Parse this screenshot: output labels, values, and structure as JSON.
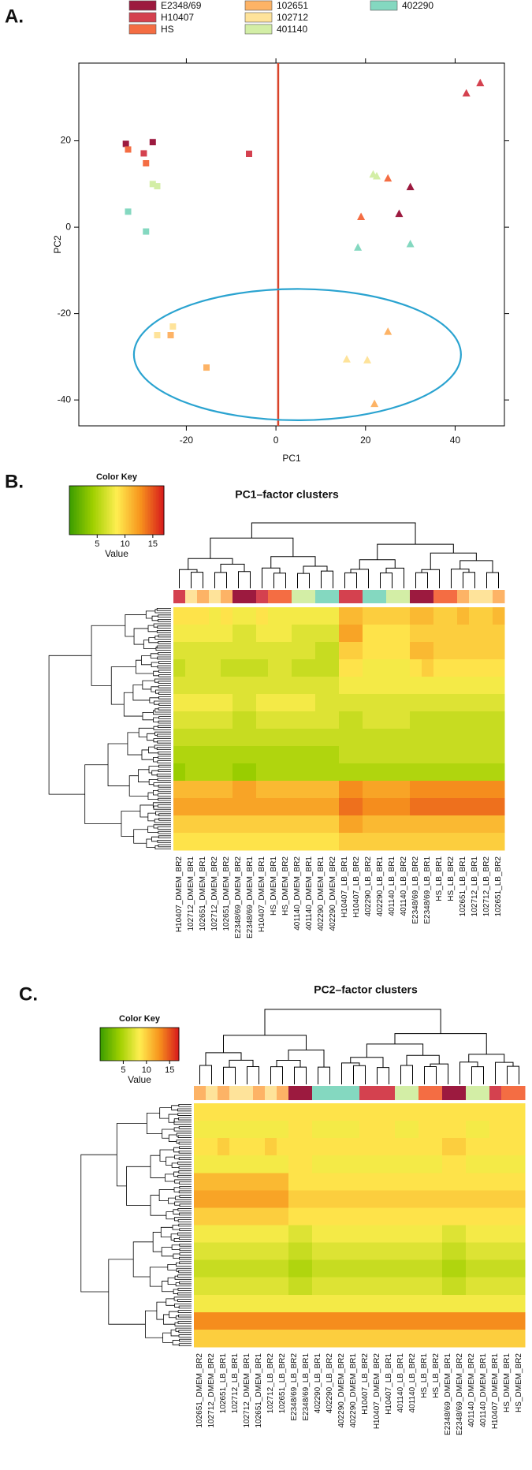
{
  "chart_data": [
    {
      "type": "scatter",
      "panel": "A.",
      "xlabel": "PC1",
      "ylabel": "PC2",
      "xlim": [
        -44,
        51
      ],
      "ylim": [
        -46,
        38
      ],
      "xticks": [
        -20,
        0,
        20,
        40
      ],
      "yticks": [
        -40,
        -20,
        0,
        20
      ],
      "reference_line": {
        "x": 0.5,
        "color": "#d9442a"
      },
      "ellipse": {
        "cx": 4.8,
        "cy": -29.5,
        "rx": 36.5,
        "ry": 15.2,
        "color": "#2aa3d0"
      },
      "series": [
        {
          "name": "E2348/69",
          "color": "#9c1a3f",
          "x": [
            -33.5,
            -27.5,
            30,
            27.5
          ],
          "values": [
            19.3,
            19.7,
            9.3,
            3.1
          ],
          "marker": [
            "square",
            "square",
            "triangle",
            "triangle"
          ]
        },
        {
          "name": "H10407",
          "color": "#d4414f",
          "x": [
            -29.5,
            -6,
            42.5,
            45.6
          ],
          "values": [
            17.1,
            17,
            31,
            33.4
          ],
          "marker": [
            "square",
            "square",
            "triangle",
            "triangle"
          ]
        },
        {
          "name": "HS",
          "color": "#f46d43",
          "x": [
            -33,
            -29,
            25,
            19
          ],
          "values": [
            18,
            14.8,
            11.3,
            2.4
          ],
          "marker": [
            "square",
            "square",
            "triangle",
            "triangle"
          ]
        },
        {
          "name": "102651",
          "color": "#fdb366",
          "x": [
            -23.5,
            -15.5,
            25,
            22
          ],
          "values": [
            -25,
            -32.5,
            -24.2,
            -40.9
          ],
          "marker": [
            "square",
            "square",
            "triangle",
            "triangle"
          ]
        },
        {
          "name": "102712",
          "color": "#fee39a",
          "x": [
            -26.5,
            -23,
            15.8,
            20.4
          ],
          "values": [
            -25,
            -23,
            -30.6,
            -30.8
          ],
          "marker": [
            "square",
            "square",
            "triangle",
            "triangle"
          ]
        },
        {
          "name": "401140",
          "color": "#d3eea6",
          "x": [
            -27.5,
            -26.5,
            21.7,
            22.5
          ],
          "values": [
            10,
            9.5,
            12.2,
            11.8
          ],
          "marker": [
            "square",
            "square",
            "triangle",
            "triangle"
          ]
        },
        {
          "name": "402290",
          "color": "#84d8c0",
          "x": [
            -33,
            -29,
            18.3,
            30
          ],
          "values": [
            3.6,
            -1,
            -4.7,
            -3.9
          ],
          "marker": [
            "square",
            "square",
            "triangle",
            "triangle"
          ]
        }
      ]
    },
    {
      "type": "heatmap",
      "panel": "B.",
      "title": "PC1–factor clusters",
      "columns": [
        "H10407_DMEM_BR2",
        "102712_DMEM_BR1",
        "102651_DMEM_BR1",
        "102712_DMEM_BR2",
        "102651_DMEM_BR2",
        "E2348/69_DMEM_BR2",
        "E2348/69_DMEM_BR1",
        "H10407_DMEM_BR1",
        "HS_DMEM_BR1",
        "HS_DMEM_BR2",
        "401140_DMEM_BR2",
        "401140_DMEM_BR1",
        "402290_DMEM_BR1",
        "402290_DMEM_BR2",
        "H10407_LB_BR1",
        "H10407_LB_BR2",
        "402290_LB_BR2",
        "402290_LB_BR1",
        "401140_LB_BR1",
        "401140_LB_BR2",
        "E2348/69_LB_BR2",
        "E2348/69_LB_BR1",
        "HS_LB_BR1",
        "HS_LB_BR2",
        "102651_LB_BR1",
        "102712_LB_BR1",
        "102712_LB_BR2",
        "102651_LB_BR2"
      ],
      "values": [
        [
          9,
          9,
          9,
          8,
          9,
          8,
          8,
          9,
          8,
          8,
          8,
          8,
          8,
          8,
          11,
          11,
          10,
          10,
          10,
          10,
          11,
          11,
          10,
          10,
          11,
          10,
          10,
          11
        ],
        [
          8,
          8,
          8,
          8,
          8,
          7,
          7,
          8,
          8,
          8,
          7,
          7,
          7,
          7,
          12,
          12,
          9,
          9,
          9,
          9,
          10,
          10,
          10,
          10,
          10,
          10,
          10,
          10
        ],
        [
          7,
          7,
          7,
          7,
          7,
          7,
          7,
          7,
          7,
          7,
          7,
          7,
          6,
          6,
          10,
          10,
          9,
          9,
          9,
          9,
          11,
          11,
          10,
          10,
          10,
          10,
          10,
          10
        ],
        [
          6,
          7,
          7,
          7,
          6,
          6,
          6,
          6,
          7,
          7,
          6,
          6,
          6,
          6,
          9,
          9,
          8,
          8,
          8,
          8,
          9,
          10,
          9,
          9,
          9,
          9,
          9,
          9
        ],
        [
          7,
          7,
          7,
          7,
          7,
          7,
          7,
          7,
          7,
          7,
          7,
          7,
          7,
          7,
          8,
          8,
          8,
          8,
          8,
          8,
          8,
          8,
          8,
          8,
          8,
          8,
          8,
          8
        ],
        [
          8,
          8,
          8,
          8,
          8,
          7,
          7,
          8,
          8,
          8,
          8,
          8,
          7,
          7,
          7,
          7,
          7,
          7,
          7,
          7,
          7,
          7,
          7,
          7,
          7,
          7,
          7,
          7
        ],
        [
          7,
          7,
          7,
          7,
          7,
          6,
          6,
          7,
          7,
          7,
          7,
          7,
          7,
          7,
          6,
          6,
          7,
          7,
          7,
          7,
          6,
          6,
          6,
          6,
          6,
          6,
          6,
          6
        ],
        [
          6,
          6,
          6,
          6,
          6,
          6,
          6,
          6,
          6,
          6,
          6,
          6,
          6,
          6,
          6,
          6,
          6,
          6,
          6,
          6,
          6,
          6,
          6,
          6,
          6,
          6,
          6,
          6
        ],
        [
          5,
          5,
          5,
          5,
          5,
          5,
          5,
          5,
          5,
          5,
          5,
          5,
          5,
          5,
          6,
          6,
          6,
          6,
          6,
          6,
          6,
          6,
          6,
          6,
          6,
          6,
          6,
          6
        ],
        [
          4,
          5,
          5,
          5,
          5,
          4,
          4,
          5,
          5,
          5,
          5,
          5,
          5,
          5,
          5,
          5,
          5,
          5,
          5,
          5,
          5,
          5,
          5,
          5,
          5,
          5,
          5,
          5
        ],
        [
          11,
          11,
          11,
          11,
          11,
          12,
          12,
          11,
          11,
          11,
          11,
          11,
          11,
          11,
          13,
          13,
          12,
          12,
          12,
          12,
          13,
          13,
          13,
          13,
          13,
          13,
          13,
          13
        ],
        [
          12,
          12,
          12,
          12,
          12,
          12,
          12,
          12,
          12,
          12,
          12,
          12,
          12,
          12,
          14,
          14,
          13,
          13,
          13,
          13,
          14,
          14,
          14,
          14,
          14,
          14,
          14,
          14
        ],
        [
          10,
          10,
          10,
          10,
          10,
          10,
          10,
          10,
          10,
          10,
          10,
          10,
          10,
          10,
          12,
          12,
          11,
          11,
          11,
          11,
          11,
          11,
          11,
          11,
          11,
          11,
          11,
          11
        ],
        [
          9,
          9,
          9,
          9,
          9,
          9,
          9,
          9,
          9,
          9,
          9,
          9,
          9,
          9,
          10,
          10,
          10,
          10,
          10,
          10,
          10,
          10,
          10,
          10,
          10,
          10,
          10,
          10
        ]
      ],
      "color_key": {
        "title": "Color Key",
        "xlabel": "Value",
        "xlim": [
          0,
          17
        ],
        "xticks": [
          5,
          10,
          15
        ],
        "colors": [
          "#3a9c00",
          "#9fd000",
          "#ffee50",
          "#f7941d",
          "#d7191c"
        ]
      }
    },
    {
      "type": "heatmap",
      "panel": "C.",
      "title": "PC2–factor clusters",
      "columns": [
        "102651_DMEM_BR2",
        "102712_DMEM_BR2",
        "102651_LB_BR1",
        "102712_LB_BR1",
        "102712_DMEM_BR1",
        "102651_DMEM_BR1",
        "102712_LB_BR2",
        "102651_LB_BR2",
        "E2348/69_LB_BR2",
        "E2348/69_LB_BR1",
        "402290_LB_BR1",
        "402290_LB_BR2",
        "402290_DMEM_BR2",
        "402290_DMEM_BR1",
        "H10407_LB_BR2",
        "H10407_DMEM_BR2",
        "H10407_LB_BR1",
        "401140_LB_BR1",
        "401140_LB_BR2",
        "HS_LB_BR1",
        "HS_LB_BR2",
        "E2348/69_DMEM_BR1",
        "E2348/69_DMEM_BR2",
        "401140_DMEM_BR2",
        "401140_DMEM_BR1",
        "H10407_DMEM_BR1",
        "HS_DMEM_BR1",
        "HS_DMEM_BR2"
      ],
      "values": [
        [
          9,
          9,
          9,
          9,
          9,
          9,
          9,
          9,
          9,
          9,
          9,
          9,
          9,
          9,
          9,
          9,
          9,
          9,
          9,
          9,
          9,
          9,
          9,
          9,
          9,
          9,
          9,
          9
        ],
        [
          8,
          8,
          8,
          8,
          8,
          8,
          8,
          8,
          9,
          9,
          8,
          8,
          8,
          8,
          9,
          9,
          9,
          8,
          8,
          9,
          9,
          9,
          9,
          8,
          8,
          9,
          9,
          9
        ],
        [
          9,
          9,
          10,
          9,
          9,
          9,
          10,
          9,
          9,
          9,
          9,
          9,
          9,
          9,
          9,
          9,
          9,
          9,
          9,
          9,
          9,
          10,
          10,
          9,
          9,
          9,
          9,
          9
        ],
        [
          8,
          8,
          8,
          8,
          8,
          8,
          8,
          8,
          9,
          9,
          8,
          8,
          8,
          8,
          8,
          8,
          8,
          8,
          8,
          8,
          8,
          9,
          9,
          8,
          8,
          8,
          8,
          8
        ],
        [
          11,
          11,
          11,
          11,
          11,
          11,
          11,
          11,
          9,
          9,
          9,
          9,
          9,
          9,
          9,
          9,
          9,
          9,
          9,
          9,
          9,
          9,
          9,
          9,
          9,
          9,
          9,
          9
        ],
        [
          12,
          12,
          12,
          12,
          12,
          12,
          12,
          12,
          10,
          10,
          10,
          10,
          10,
          10,
          10,
          10,
          10,
          10,
          10,
          10,
          10,
          10,
          10,
          10,
          10,
          10,
          10,
          10
        ],
        [
          10,
          10,
          10,
          10,
          10,
          10,
          10,
          10,
          9,
          9,
          9,
          9,
          9,
          9,
          9,
          9,
          9,
          9,
          9,
          9,
          9,
          9,
          9,
          9,
          9,
          9,
          9,
          9
        ],
        [
          8,
          8,
          8,
          8,
          8,
          8,
          8,
          8,
          7,
          7,
          8,
          8,
          8,
          8,
          8,
          8,
          8,
          8,
          8,
          8,
          8,
          7,
          7,
          8,
          8,
          8,
          8,
          8
        ],
        [
          7,
          7,
          7,
          7,
          7,
          7,
          7,
          7,
          6,
          6,
          7,
          7,
          7,
          7,
          7,
          7,
          7,
          7,
          7,
          7,
          7,
          6,
          6,
          7,
          7,
          7,
          7,
          7
        ],
        [
          6,
          6,
          6,
          6,
          6,
          6,
          6,
          6,
          5,
          5,
          6,
          6,
          6,
          6,
          6,
          6,
          6,
          6,
          6,
          6,
          6,
          5,
          5,
          6,
          6,
          6,
          6,
          6
        ],
        [
          7,
          7,
          7,
          7,
          7,
          7,
          7,
          7,
          6,
          6,
          7,
          7,
          7,
          7,
          7,
          7,
          7,
          7,
          7,
          7,
          7,
          6,
          6,
          7,
          7,
          7,
          7,
          7
        ],
        [
          8,
          8,
          8,
          8,
          8,
          8,
          8,
          8,
          8,
          8,
          8,
          8,
          8,
          8,
          8,
          8,
          8,
          8,
          8,
          8,
          8,
          8,
          8,
          8,
          8,
          8,
          8,
          8
        ],
        [
          13,
          13,
          13,
          13,
          13,
          13,
          13,
          13,
          13,
          13,
          13,
          13,
          13,
          13,
          13,
          13,
          13,
          13,
          13,
          13,
          13,
          13,
          13,
          13,
          13,
          13,
          13,
          13
        ],
        [
          10,
          10,
          10,
          10,
          10,
          10,
          10,
          10,
          10,
          10,
          10,
          10,
          10,
          10,
          10,
          10,
          10,
          10,
          10,
          10,
          10,
          10,
          10,
          10,
          10,
          10,
          10,
          10
        ]
      ],
      "color_key": {
        "title": "Color Key",
        "xlabel": "Value",
        "xlim": [
          0,
          17
        ],
        "xticks": [
          5,
          10,
          15
        ],
        "colors": [
          "#3a9c00",
          "#9fd000",
          "#ffee50",
          "#f7941d",
          "#d7191c"
        ]
      }
    }
  ]
}
